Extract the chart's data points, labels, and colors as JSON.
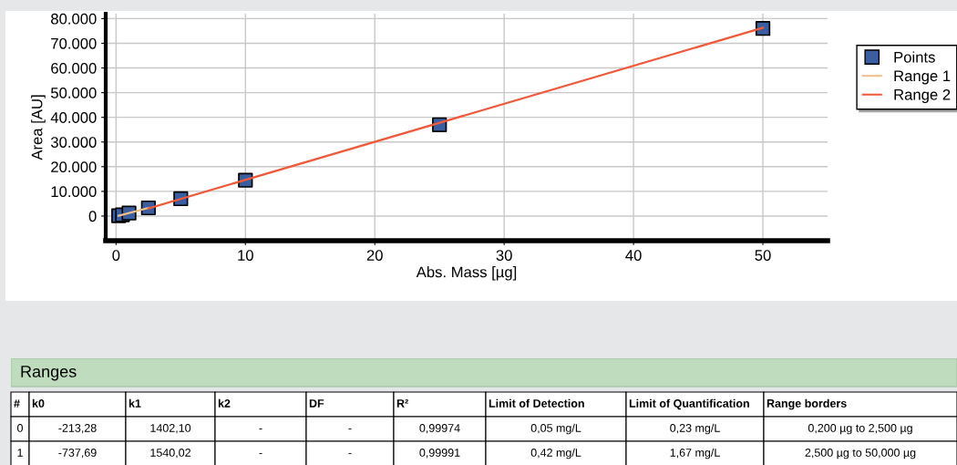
{
  "chart_data": [
    {
      "type": "scatter",
      "xlabel": "Abs. Mass [µg]",
      "ylabel": "Area [AU]",
      "x": [
        0.2,
        0.5,
        1,
        2.5,
        5,
        10,
        25,
        50
      ],
      "series": [
        {
          "name": "Points",
          "type": "scatter",
          "color": "#3a5ea0",
          "marker": "square",
          "values": [
            100,
            500,
            1200,
            3300,
            7000,
            14500,
            37000,
            76000
          ]
        },
        {
          "name": "Range 1",
          "type": "line",
          "color": "#f0c08a",
          "x": [
            0.2,
            2.5
          ],
          "values": [
            100,
            3300
          ]
        },
        {
          "name": "Range 2",
          "type": "line",
          "color": "#f05a3c",
          "x": [
            2.5,
            50
          ],
          "values": [
            3100,
            76300
          ]
        }
      ],
      "xlim": [
        -0.8,
        55
      ],
      "xticks": [
        0,
        10,
        20,
        30,
        40,
        50
      ],
      "ylim": [
        -10000,
        82000
      ],
      "yticks": [
        {
          "value": 0,
          "label": "0"
        },
        {
          "value": 10000,
          "label": "10.000"
        },
        {
          "value": 20000,
          "label": "20.000"
        },
        {
          "value": 30000,
          "label": "30.000"
        },
        {
          "value": 40000,
          "label": "40.000"
        },
        {
          "value": 50000,
          "label": "50.000"
        },
        {
          "value": 60000,
          "label": "60.000"
        },
        {
          "value": 70000,
          "label": "70.000"
        },
        {
          "value": 80000,
          "label": "80.000"
        }
      ],
      "grid": true,
      "legend": "right"
    },
    {
      "type": "other",
      "title": "Ranges",
      "categories": [
        "#",
        "k0",
        "k1",
        "k2",
        "DF",
        "R²",
        "Limit of Detection",
        "Limit of Quantification",
        "Range borders"
      ],
      "annotations": [
        "0",
        "-213,28",
        "1402,10",
        "-",
        "-",
        "0,99974",
        "0,05 mg/L",
        "0,23 mg/L",
        "0,200 µg to 2,500 µg",
        "1",
        "-737,69",
        "1540,02",
        "-",
        "-",
        "0,99991",
        "0,42 mg/L",
        "1,67 mg/L",
        "2,500 µg to 50,000 µg"
      ]
    }
  ]
}
